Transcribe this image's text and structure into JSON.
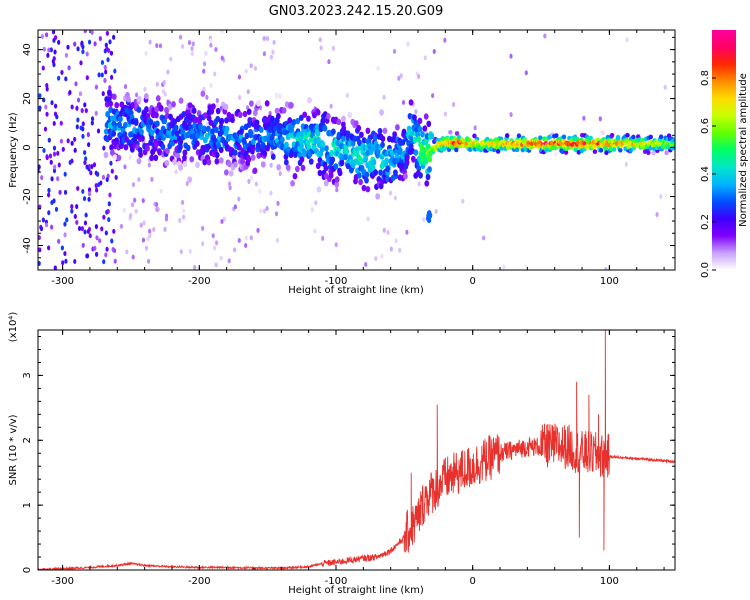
{
  "title": "GN03.2023.242.15.20.G09",
  "chart_data": [
    {
      "type": "heatmap",
      "xlabel": "Height of straight line (km)",
      "ylabel": "Frequency (Hz)",
      "xlim": [
        -318,
        148
      ],
      "ylim": [
        -50,
        48
      ],
      "xticks": [
        -300,
        -200,
        -100,
        0,
        100
      ],
      "xtick_labels": [
        "-300",
        "-200",
        "-100",
        "0",
        "100"
      ],
      "yticks": [
        -40,
        -20,
        0,
        20,
        40
      ],
      "ytick_labels": [
        "-40",
        "-20",
        "0",
        "20",
        "40"
      ],
      "ridge": {
        "x": [
          -262,
          -240,
          -220,
          -200,
          -180,
          -160,
          -140,
          -120,
          -100,
          -80,
          -60,
          -50,
          -45,
          -40,
          -35,
          -30,
          -25,
          -20,
          -10,
          0,
          50,
          100,
          148
        ],
        "y": [
          10,
          8,
          6,
          5,
          5,
          4,
          4,
          3,
          0,
          -4,
          -5,
          -2,
          8,
          0,
          -3,
          -1,
          1,
          2,
          2,
          1.5,
          1.5,
          1.5,
          1.5
        ],
        "amplitude": [
          0.35,
          0.3,
          0.3,
          0.32,
          0.32,
          0.3,
          0.35,
          0.45,
          0.4,
          0.45,
          0.4,
          0.35,
          0.4,
          0.5,
          0.55,
          0.6,
          0.8,
          0.85,
          0.9,
          0.7,
          0.9,
          0.85,
          0.6
        ]
      },
      "colorbar": {
        "label": "Normalized spectral amplitude",
        "range": [
          0,
          1
        ],
        "ticks": [
          0.0,
          0.2,
          0.4,
          0.6,
          0.8
        ],
        "tick_labels": [
          "0.0",
          "0.2",
          "0.4",
          "0.6",
          "0.8"
        ],
        "colors": [
          "#ffffff",
          "#c8a0ff",
          "#8000ff",
          "#3c00ff",
          "#0050ff",
          "#00b4ff",
          "#00e6c8",
          "#00ff64",
          "#64ff00",
          "#c8ff00",
          "#ffdc00",
          "#ff8c00",
          "#ff2800",
          "#ff0064",
          "#ff00a0"
        ]
      }
    },
    {
      "type": "line",
      "xlabel": "Height of straight line (km)",
      "ylabel": "SNR (10 * v/v)",
      "scale_label": "(x10⁴)",
      "xlim": [
        -318,
        148
      ],
      "ylim": [
        0,
        3.7
      ],
      "xticks": [
        -300,
        -200,
        -100,
        0,
        100
      ],
      "xtick_labels": [
        "-300",
        "-200",
        "-100",
        "0",
        "100"
      ],
      "yticks": [
        0,
        1,
        2,
        3
      ],
      "ytick_labels": [
        "0",
        "1",
        "2",
        "3"
      ],
      "series": [
        {
          "color": "#e8302c",
          "x": [
            -318,
            -300,
            -280,
            -260,
            -250,
            -240,
            -220,
            -200,
            -180,
            -160,
            -140,
            -120,
            -110,
            -100,
            -90,
            -80,
            -70,
            -60,
            -50,
            -40,
            -35,
            -30,
            -25,
            -20,
            -10,
            0,
            10,
            20,
            30,
            40,
            50,
            60,
            70,
            75,
            80,
            85,
            90,
            95,
            97,
            100,
            110,
            120,
            130,
            148
          ],
          "y": [
            0.01,
            0.02,
            0.04,
            0.07,
            0.1,
            0.07,
            0.05,
            0.04,
            0.04,
            0.03,
            0.03,
            0.05,
            0.1,
            0.12,
            0.15,
            0.18,
            0.2,
            0.3,
            0.5,
            0.8,
            1.1,
            1.2,
            1.3,
            1.4,
            1.5,
            1.6,
            1.7,
            1.8,
            1.85,
            1.9,
            1.9,
            1.92,
            1.9,
            1.85,
            1.8,
            1.8,
            1.78,
            1.75,
            1.75,
            1.75,
            1.73,
            1.72,
            1.7,
            1.67
          ],
          "spikes": [
            {
              "x": -45,
              "y": 1.5
            },
            {
              "x": -26,
              "y": 2.55
            },
            {
              "x": -20,
              "y": 1.6
            },
            {
              "x": -10,
              "y": 1.7
            },
            {
              "x": 55,
              "y": 2.25
            },
            {
              "x": 76,
              "y": 2.9
            },
            {
              "x": 78,
              "y": 0.5
            },
            {
              "x": 85,
              "y": 2.7
            },
            {
              "x": 97,
              "y": 3.7
            },
            {
              "x": 96,
              "y": 0.3
            },
            {
              "x": 92,
              "y": 2.4
            }
          ]
        }
      ]
    }
  ]
}
